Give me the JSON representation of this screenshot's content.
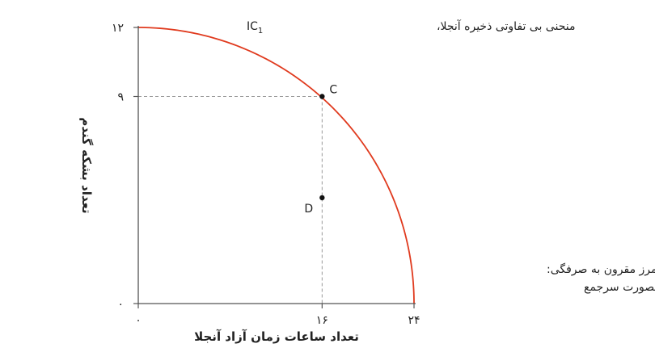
{
  "chart_data": {
    "type": "line",
    "xlabel": "تعداد ساعات زمان آزاد آنجلا",
    "ylabel": "تعداد بشکه گندم",
    "xlim": [
      0,
      24
    ],
    "ylim": [
      0,
      12
    ],
    "x_ticks": [
      {
        "value": 0,
        "label": "۰"
      },
      {
        "value": 16,
        "label": "۱۶"
      },
      {
        "value": 24,
        "label": "۲۴"
      }
    ],
    "y_ticks": [
      {
        "value": 0,
        "label": "۰"
      },
      {
        "value": 9,
        "label": "۹"
      },
      {
        "value": 12,
        "label": "۱۲"
      }
    ],
    "frontier": {
      "shape": "quarter-ellipse",
      "x_intercept": 24,
      "y_intercept": 12,
      "color": "#e03a1e",
      "label_line1": "مرز مقرون به صرفگی:",
      "label_line2": "آنجلا و برونو بصورت سرجمع"
    },
    "curve_label": {
      "text": "منحنی بی تفاوتی ذخیره آنجلا،",
      "symbol": "IC",
      "subscript": "1"
    },
    "points": [
      {
        "name": "C",
        "x": 16,
        "y": 9
      },
      {
        "name": "D",
        "x": 16,
        "y": 4.6
      }
    ],
    "guides": {
      "style": "dashed",
      "color": "#999999"
    },
    "grid": false
  }
}
